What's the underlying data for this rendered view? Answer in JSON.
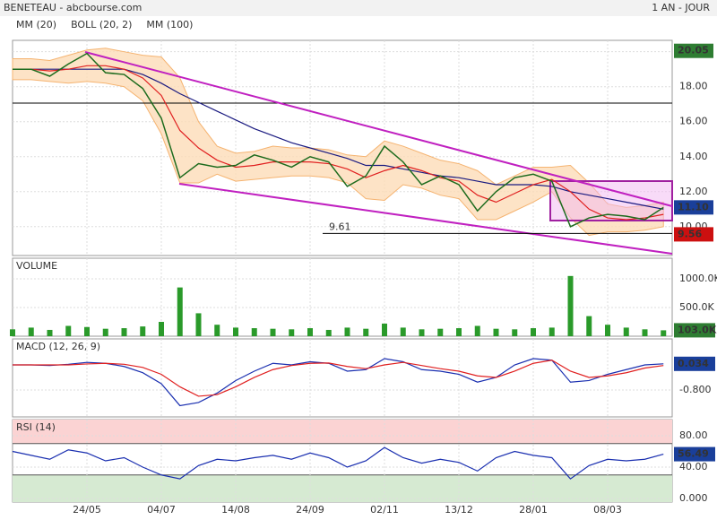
{
  "title": "BENETEAU - abcbourse.com",
  "period": "1 AN - JOUR",
  "chart_data": [
    {
      "type": "price",
      "values": [
        19.0,
        19.0,
        18.6,
        19.3,
        19.9,
        18.8,
        18.7,
        17.9,
        16.2,
        12.8,
        13.6,
        13.4,
        13.5,
        14.1,
        13.8,
        13.4,
        14.0,
        13.7,
        12.3,
        12.9,
        14.6,
        13.7,
        12.4,
        12.9,
        12.4,
        10.9,
        12.0,
        12.8,
        13.0,
        12.6,
        10.0,
        10.5,
        10.7,
        10.6,
        10.4,
        11.1
      ],
      "color": "#1d6b1d",
      "series": [
        {
          "name": "MM (20)",
          "color": "#e02020",
          "values": [
            19.0,
            19.0,
            18.9,
            19.0,
            19.2,
            19.2,
            19.0,
            18.5,
            17.5,
            15.5,
            14.5,
            13.8,
            13.4,
            13.5,
            13.7,
            13.7,
            13.7,
            13.6,
            13.3,
            12.8,
            13.2,
            13.5,
            13.2,
            12.8,
            12.6,
            11.8,
            11.4,
            11.9,
            12.4,
            12.7,
            12.0,
            11.0,
            10.5,
            10.4,
            10.5,
            10.7
          ]
        },
        {
          "name": "BOLL (20, 2)",
          "color": "#f5b370",
          "type": "band",
          "upper": [
            19.6,
            19.6,
            19.5,
            19.8,
            20.1,
            20.2,
            20.0,
            19.8,
            19.7,
            18.5,
            16.0,
            14.6,
            14.2,
            14.3,
            14.6,
            14.5,
            14.5,
            14.4,
            14.1,
            14.0,
            14.9,
            14.6,
            14.2,
            13.8,
            13.6,
            13.2,
            12.4,
            12.9,
            13.4,
            13.4,
            13.5,
            12.5,
            11.3,
            11.1,
            11.2,
            11.4
          ],
          "lower": [
            18.4,
            18.4,
            18.3,
            18.2,
            18.3,
            18.2,
            18.0,
            17.2,
            15.3,
            12.5,
            12.5,
            13.0,
            12.6,
            12.7,
            12.8,
            12.9,
            12.9,
            12.8,
            12.5,
            11.6,
            11.5,
            12.4,
            12.2,
            11.8,
            11.6,
            10.4,
            10.4,
            10.9,
            11.4,
            12.0,
            10.5,
            9.5,
            9.7,
            9.7,
            9.8,
            10.0
          ]
        },
        {
          "name": "MM (100)",
          "color": "#1a1a80",
          "values": [
            19.0,
            19.0,
            19.0,
            19.0,
            19.0,
            19.0,
            19.0,
            18.7,
            18.2,
            17.6,
            17.1,
            16.6,
            16.1,
            15.6,
            15.2,
            14.8,
            14.5,
            14.2,
            13.9,
            13.5,
            13.5,
            13.3,
            13.1,
            12.9,
            12.8,
            12.6,
            12.4,
            12.4,
            12.4,
            12.3,
            12.0,
            11.8,
            11.6,
            11.4,
            11.2,
            11.0
          ]
        }
      ],
      "ylim": [
        8.35,
        20.65
      ],
      "yticks": [
        {
          "value": 10,
          "label": "10.00"
        },
        {
          "value": 12,
          "label": "12.00"
        },
        {
          "value": 14,
          "label": "14.00"
        },
        {
          "value": 16,
          "label": "16.00"
        },
        {
          "value": 18,
          "label": "18.00"
        },
        {
          "value": 20,
          "label": "20.00"
        }
      ],
      "annotation": 9.61,
      "high": 20.05,
      "last": {
        "value": 11.1,
        "label": "11.10"
      },
      "low": 9.56
    },
    {
      "type": "bar",
      "title": "VOLUME",
      "color": "#2a9a2a",
      "values": [
        120000,
        150000,
        110000,
        180000,
        160000,
        130000,
        140000,
        170000,
        250000,
        850000,
        400000,
        200000,
        150000,
        140000,
        130000,
        120000,
        140000,
        110000,
        150000,
        130000,
        220000,
        150000,
        120000,
        130000,
        140000,
        180000,
        130000,
        120000,
        140000,
        150000,
        1050000,
        350000,
        200000,
        150000,
        120000,
        103000
      ],
      "ylim": [
        0,
        1360000
      ],
      "yticks": [
        {
          "value": 500000,
          "label": "500.0K"
        },
        {
          "value": 1000000,
          "label": "1000.0K"
        }
      ],
      "last": {
        "value": 103000,
        "label": "103.0K"
      }
    },
    {
      "type": "line",
      "title": "MACD (12, 26, 9)",
      "series": [
        {
          "color": "#1a2fb0",
          "values": [
            0,
            0,
            -0.02,
            0.02,
            0.08,
            0.05,
            -0.05,
            -0.25,
            -0.6,
            -1.3,
            -1.2,
            -0.9,
            -0.5,
            -0.2,
            0.05,
            0.0,
            0.1,
            0.05,
            -0.2,
            -0.15,
            0.2,
            0.1,
            -0.15,
            -0.2,
            -0.3,
            -0.55,
            -0.4,
            0.0,
            0.2,
            0.15,
            -0.55,
            -0.5,
            -0.3,
            -0.15,
            0.0,
            0.034
          ]
        },
        {
          "color": "#e02020",
          "values": [
            0,
            0,
            0,
            0,
            0.03,
            0.05,
            0.02,
            -0.08,
            -0.3,
            -0.7,
            -1.0,
            -0.95,
            -0.7,
            -0.4,
            -0.15,
            -0.02,
            0.05,
            0.06,
            -0.05,
            -0.12,
            0.0,
            0.08,
            -0.02,
            -0.12,
            -0.2,
            -0.35,
            -0.4,
            -0.2,
            0.05,
            0.15,
            -0.2,
            -0.4,
            -0.35,
            -0.25,
            -0.1,
            -0.02
          ]
        }
      ],
      "ylim": [
        -1.66,
        0.83
      ],
      "yticks": [
        {
          "value": -0.8,
          "label": "-0.800"
        }
      ],
      "last": 0.034
    },
    {
      "type": "line",
      "title": "RSI (14)",
      "categories": [
        null,
        null,
        null,
        null,
        "24/05",
        null,
        null,
        null,
        "04/07",
        null,
        null,
        null,
        "14/08",
        null,
        null,
        null,
        "24/09",
        null,
        null,
        null,
        "02/11",
        null,
        null,
        null,
        "13/12",
        null,
        null,
        null,
        "28/01",
        null,
        null,
        null,
        "08/03",
        null,
        null,
        null
      ],
      "series": [
        {
          "color": "#1a2fb0",
          "values": [
            60,
            55,
            50,
            62,
            58,
            48,
            52,
            40,
            30,
            25,
            42,
            50,
            48,
            52,
            55,
            50,
            58,
            52,
            40,
            48,
            65,
            52,
            45,
            50,
            46,
            35,
            52,
            60,
            55,
            52,
            25,
            42,
            50,
            48,
            50,
            56.49
          ]
        }
      ],
      "upper_band": 70,
      "lower_band": 30,
      "ylim": [
        -4.6,
        100.6
      ],
      "yticks": [
        {
          "value": 0,
          "label": "0.000"
        },
        {
          "value": 40,
          "label": "40.00"
        },
        {
          "value": 80,
          "label": "80.00"
        }
      ],
      "last": 56.49
    }
  ]
}
